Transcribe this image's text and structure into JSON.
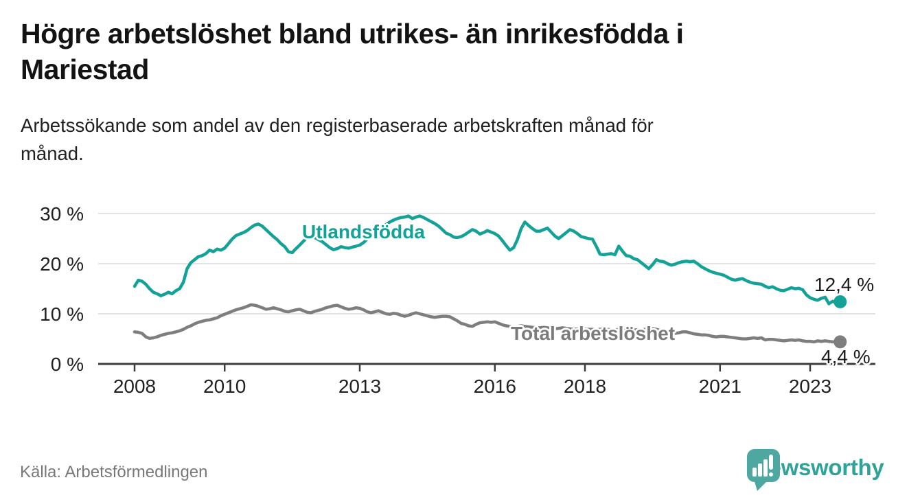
{
  "title": "Högre arbetslöshet bland utrikes- än inrikesfödda i\nMariestad",
  "subtitle": "Arbetssökande som andel av den registerbaserade arbetskraften månad för\nmånad.",
  "source": "Källa: Arbetsförmedlingen",
  "branding": {
    "name": "Newsworthy",
    "logo_icon": "speech-bubble-bar-chart-exclamation",
    "color": "#2fa29a"
  },
  "chart_data": {
    "type": "line",
    "title": "Högre arbetslöshet bland utrikes- än inrikesfödda i Mariestad",
    "subtitle": "Arbetssökande som andel av den registerbaserade arbetskraften månad för månad.",
    "x_unit": "month",
    "x_start": "2008-01",
    "x_end": "2023-09",
    "x_tick_years": [
      2008,
      2010,
      2013,
      2016,
      2018,
      2021,
      2023
    ],
    "y_ticks": [
      0,
      10,
      20,
      30
    ],
    "y_tick_suffix": " %",
    "ylim": [
      0,
      32
    ],
    "grid": "horizontal",
    "legend_position": "inline-labels",
    "colors": {
      "grid": "#e3e3e3",
      "axis": "#3c3c3c",
      "teal": "#14a197",
      "gray": "#7e7e7e"
    },
    "series": [
      {
        "name": "Utlandsfödda",
        "color": "#14a197",
        "end_label": "12,4 %",
        "end_value": 12.4,
        "values": [
          15.5,
          16.7,
          16.5,
          15.9,
          15.0,
          14.3,
          14.0,
          13.6,
          13.9,
          14.3,
          14.0,
          14.6,
          15.0,
          16.3,
          19.0,
          20.2,
          20.8,
          21.4,
          21.6,
          22.0,
          22.7,
          22.4,
          22.9,
          22.7,
          23.1,
          24.0,
          24.9,
          25.6,
          25.9,
          26.2,
          26.6,
          27.2,
          27.7,
          27.9,
          27.5,
          26.8,
          26.1,
          25.4,
          24.8,
          24.0,
          23.4,
          22.4,
          22.2,
          23.0,
          23.7,
          24.5,
          25.2,
          25.5,
          25.2,
          24.8,
          24.4,
          23.8,
          23.2,
          22.8,
          23.0,
          23.4,
          23.2,
          23.1,
          23.3,
          23.5,
          23.7,
          24.2,
          24.9,
          25.6,
          26.2,
          26.8,
          27.3,
          27.8,
          28.3,
          28.7,
          29.0,
          29.2,
          29.3,
          29.5,
          29.0,
          29.3,
          29.5,
          29.2,
          28.8,
          28.4,
          28.0,
          27.5,
          26.8,
          26.1,
          25.8,
          25.3,
          25.2,
          25.4,
          25.8,
          26.3,
          26.8,
          26.5,
          25.9,
          26.2,
          26.6,
          26.3,
          26.0,
          25.5,
          24.6,
          23.6,
          22.7,
          23.2,
          24.8,
          27.0,
          28.3,
          27.6,
          27.0,
          26.5,
          26.5,
          26.8,
          27.1,
          26.3,
          25.5,
          25.0,
          25.6,
          26.2,
          26.8,
          26.5,
          26.0,
          25.4,
          25.2,
          25.0,
          24.9,
          23.5,
          21.9,
          21.8,
          21.9,
          22.0,
          21.8,
          23.5,
          22.5,
          21.6,
          21.5,
          21.0,
          20.8,
          20.2,
          19.6,
          19.0,
          19.8,
          20.8,
          20.5,
          20.4,
          20.0,
          19.7,
          19.9,
          20.2,
          20.4,
          20.5,
          20.4,
          20.5,
          20.0,
          19.4,
          19.0,
          18.6,
          18.3,
          18.1,
          17.9,
          17.7,
          17.3,
          16.9,
          16.7,
          16.9,
          17.0,
          16.6,
          16.3,
          16.1,
          16.0,
          15.9,
          15.5,
          15.2,
          15.4,
          15.0,
          14.7,
          14.6,
          14.9,
          15.2,
          15.0,
          15.1,
          14.8,
          13.8,
          13.2,
          12.9,
          12.7,
          13.1,
          13.3,
          12.0,
          12.5,
          12.2,
          12.4
        ]
      },
      {
        "name": "Total arbetslöshet",
        "color": "#7e7e7e",
        "end_label": "4,4 %",
        "end_value": 4.4,
        "values": [
          6.4,
          6.3,
          6.1,
          5.4,
          5.1,
          5.2,
          5.4,
          5.7,
          5.9,
          6.1,
          6.2,
          6.4,
          6.6,
          6.9,
          7.3,
          7.6,
          8.0,
          8.3,
          8.5,
          8.7,
          8.8,
          9.0,
          9.2,
          9.6,
          9.9,
          10.2,
          10.5,
          10.8,
          11.0,
          11.2,
          11.5,
          11.8,
          11.7,
          11.5,
          11.2,
          10.9,
          11.0,
          11.2,
          11.0,
          10.8,
          10.5,
          10.4,
          10.6,
          10.8,
          10.9,
          10.6,
          10.3,
          10.2,
          10.5,
          10.7,
          10.9,
          11.2,
          11.4,
          11.6,
          11.7,
          11.4,
          11.1,
          10.9,
          11.0,
          11.2,
          11.1,
          10.8,
          10.4,
          10.2,
          10.4,
          10.6,
          10.3,
          10.0,
          9.9,
          10.1,
          10.0,
          9.7,
          9.5,
          9.7,
          10.0,
          10.2,
          10.0,
          9.8,
          9.6,
          9.4,
          9.3,
          9.4,
          9.5,
          9.5,
          9.4,
          9.0,
          8.6,
          8.1,
          7.9,
          7.6,
          7.5,
          7.9,
          8.2,
          8.3,
          8.4,
          8.3,
          8.4,
          8.1,
          7.8,
          7.6,
          7.5,
          7.4,
          7.5,
          7.6,
          7.5,
          7.4,
          7.3,
          7.3,
          7.2,
          7.3,
          7.2,
          7.1,
          7.0,
          7.1,
          7.2,
          7.1,
          7.0,
          6.9,
          7.0,
          7.1,
          7.0,
          6.9,
          6.9,
          6.8,
          6.9,
          7.0,
          6.9,
          6.8,
          6.8,
          6.9,
          6.8,
          6.9,
          6.9,
          6.8,
          6.8,
          6.8,
          6.9,
          7.0,
          7.1,
          6.9,
          6.7,
          6.5,
          6.4,
          6.2,
          6.1,
          6.2,
          6.4,
          6.4,
          6.2,
          6.0,
          5.9,
          5.8,
          5.8,
          5.7,
          5.5,
          5.4,
          5.5,
          5.5,
          5.4,
          5.3,
          5.2,
          5.1,
          5.0,
          5.0,
          5.1,
          5.2,
          5.1,
          5.2,
          4.8,
          4.9,
          4.9,
          4.8,
          4.7,
          4.6,
          4.7,
          4.8,
          4.7,
          4.8,
          4.6,
          4.5,
          4.5,
          4.4,
          4.6,
          4.5,
          4.6,
          4.5,
          4.4,
          4.4,
          4.4
        ]
      }
    ]
  }
}
